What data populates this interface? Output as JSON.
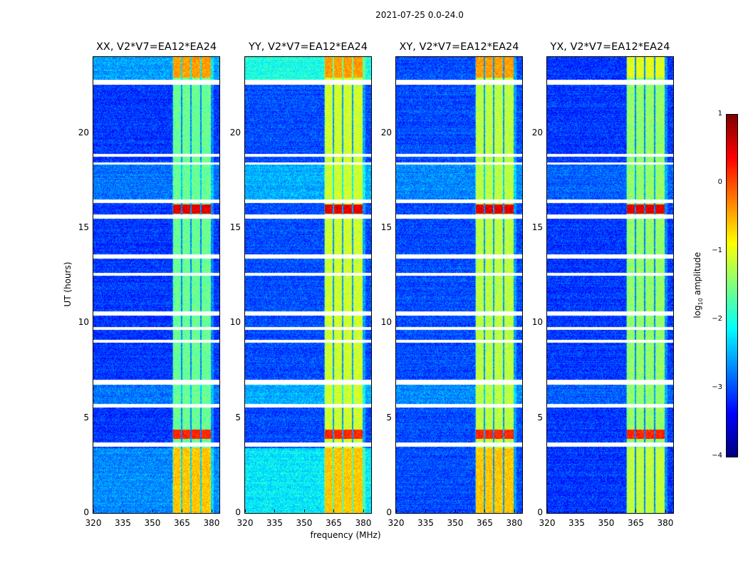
{
  "chart_data": {
    "type": "heatmap",
    "suptitle": "2021-07-25 0.0-24.0",
    "xlabel": "frequency (MHz)",
    "ylabel": "UT (hours)",
    "xlim": [
      320,
      384
    ],
    "ylim": [
      0,
      24
    ],
    "xticks": [
      "320",
      "335",
      "350",
      "365",
      "380"
    ],
    "yticks": [
      "0",
      "5",
      "10",
      "15",
      "20"
    ],
    "colorbar": {
      "label_prefix": "log",
      "label_sub": "10",
      "label_suffix": " amplitude",
      "range": [
        -4,
        1
      ],
      "ticks": [
        "1",
        "0",
        "−1",
        "−2",
        "−3",
        "−4"
      ],
      "colormap": "jet"
    },
    "flagged_hours": [
      [
        22.55,
        22.8
      ],
      [
        18.75,
        18.9
      ],
      [
        18.35,
        18.45
      ],
      [
        16.3,
        16.5
      ],
      [
        15.5,
        15.7
      ],
      [
        13.4,
        13.6
      ],
      [
        12.5,
        12.65
      ],
      [
        10.4,
        10.6
      ],
      [
        9.65,
        9.8
      ],
      [
        8.95,
        9.1
      ],
      [
        6.75,
        7.0
      ],
      [
        5.55,
        5.75
      ],
      [
        3.5,
        3.7
      ]
    ],
    "bright_bands_mhz": [
      [
        360.4,
        364.5
      ],
      [
        365.2,
        369.3
      ],
      [
        370,
        374.3
      ],
      [
        375,
        379.5
      ]
    ],
    "panels": [
      {
        "title": "XX, V2*V7=EA12*EA24",
        "bg": -3.1,
        "band": -1.6,
        "top_bg": -2.6,
        "low_bg": -2.7,
        "mid_bg": -2.8
      },
      {
        "title": "YY, V2*V7=EA12*EA24",
        "bg": -3.0,
        "band": -1.1,
        "top_bg": -2.0,
        "low_bg": -2.2,
        "mid_bg": -2.5
      },
      {
        "title": "XY, V2*V7=EA12*EA24",
        "bg": -3.0,
        "band": -1.2,
        "top_bg": -3.0,
        "low_bg": -3.0,
        "mid_bg": -2.7
      },
      {
        "title": "YX, V2*V7=EA12*EA24",
        "bg": -3.1,
        "band": -1.4,
        "top_bg": -3.1,
        "low_bg": -3.1,
        "mid_bg": -2.9
      }
    ],
    "hot_periods_hours": [
      [
        15.75,
        16.25,
        0.5
      ],
      [
        3.9,
        4.4,
        0.2
      ],
      [
        0,
        3.4,
        -0.6
      ],
      [
        22.9,
        24,
        -0.4
      ]
    ]
  }
}
